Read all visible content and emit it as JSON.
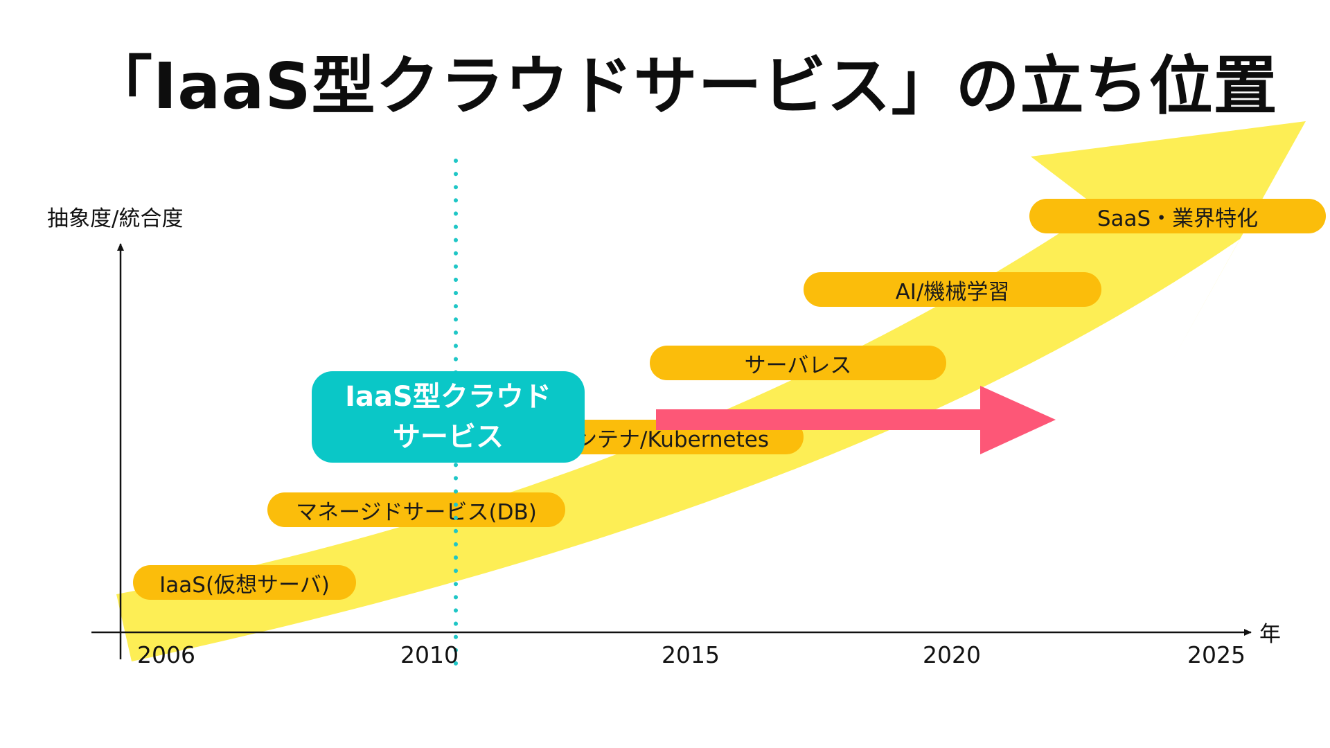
{
  "title": "「IaaS型クラウドサービス」の立ち位置",
  "axes": {
    "y_label": "抽象度/統合度",
    "x_label": "年"
  },
  "years": [
    "2006",
    "2010",
    "2015",
    "2020",
    "2025"
  ],
  "stages": [
    {
      "label": "IaaS(仮想サーバ)"
    },
    {
      "label": "マネージドサービス(DB)"
    },
    {
      "label": "コンテナ/Kubernetes"
    },
    {
      "label": "サーバレス"
    },
    {
      "label": "AI/機械学習"
    },
    {
      "label": "SaaS・業界特化"
    }
  ],
  "highlight": {
    "line1": "IaaS型クラウド",
    "line2": "サービス"
  },
  "colors": {
    "trend_arrow": "#fdee55",
    "stage_pill": "#fbbd0b",
    "highlight_box": "#0ac7c7",
    "marker_line": "#1fc6c6",
    "pink_arrow": "#fd5777"
  }
}
